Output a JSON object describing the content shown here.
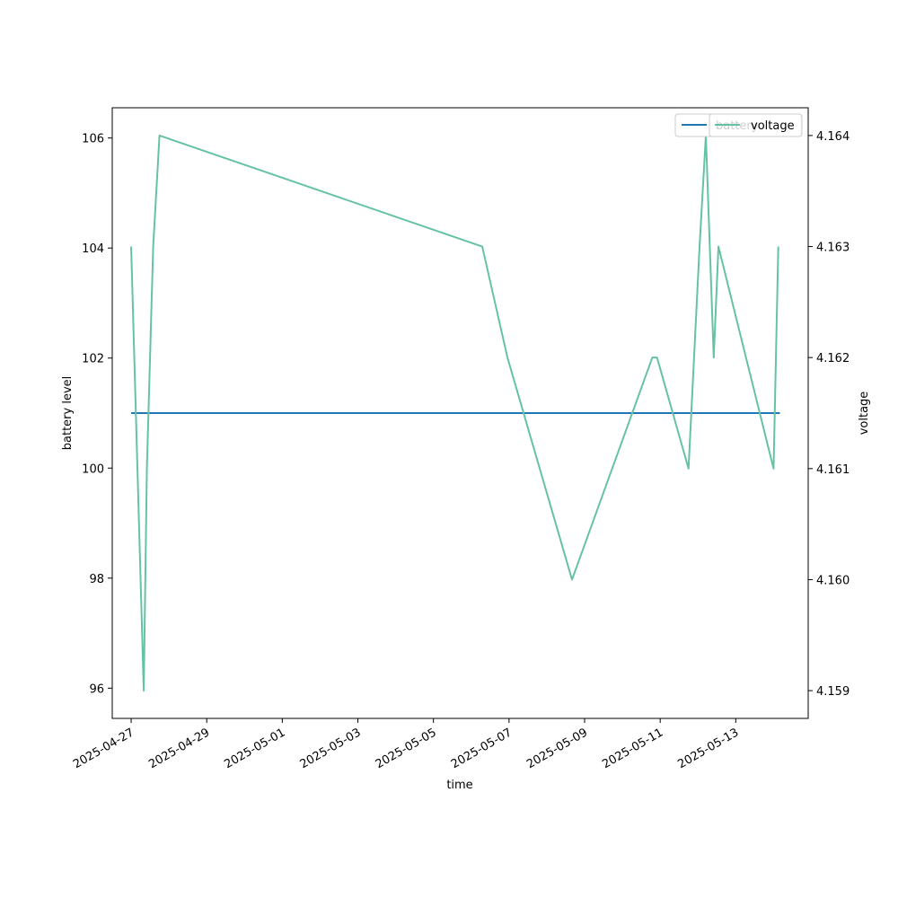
{
  "chart_data": {
    "type": "line",
    "xlabel": "time",
    "ylabel_left": "battery level",
    "ylabel_right": "voltage",
    "xlim": [
      "2025-04-26T12:00",
      "2025-05-14T22:00"
    ],
    "x_ticks": [
      "2025-04-27",
      "2025-04-29",
      "2025-05-01",
      "2025-05-03",
      "2025-05-05",
      "2025-05-07",
      "2025-05-09",
      "2025-05-11",
      "2025-05-13"
    ],
    "ylim_left": [
      95.45,
      106.55
    ],
    "y_ticks_left": [
      96,
      98,
      100,
      102,
      104,
      106
    ],
    "ylim_right": [
      4.15875,
      4.16425
    ],
    "y_ticks_right": [
      "4.159",
      "4.160",
      "4.161",
      "4.162",
      "4.163",
      "4.164"
    ],
    "grid": false,
    "legend_placement": "upper right (overlapping)",
    "series": [
      {
        "name": "battery",
        "axis": "left",
        "color": "#1f77b4",
        "x": [
          "2025-04-27T00:00",
          "2025-05-14T04:00"
        ],
        "y": [
          101,
          101
        ]
      },
      {
        "name": "voltage",
        "axis": "right",
        "color": "#66c2a5",
        "x": [
          "2025-04-27T00:00",
          "2025-04-27T08:00",
          "2025-04-27T10:00",
          "2025-04-27T12:00",
          "2025-04-27T14:00",
          "2025-04-27T18:00",
          "2025-05-06T07:00",
          "2025-05-06T23:00",
          "2025-05-08T16:00",
          "2025-05-10T19:00",
          "2025-05-10T22:00",
          "2025-05-11T18:00",
          "2025-05-12T01:00",
          "2025-05-12T05:00",
          "2025-05-12T10:00",
          "2025-05-12T13:00",
          "2025-05-14T00:00",
          "2025-05-14T03:00"
        ],
        "y": [
          4.163,
          4.159,
          4.161,
          4.162,
          4.163,
          4.164,
          4.163,
          4.162,
          4.16,
          4.162,
          4.162,
          4.161,
          4.163,
          4.164,
          4.162,
          4.163,
          4.161,
          4.163
        ]
      }
    ],
    "legend": [
      "battery",
      "voltage"
    ]
  }
}
